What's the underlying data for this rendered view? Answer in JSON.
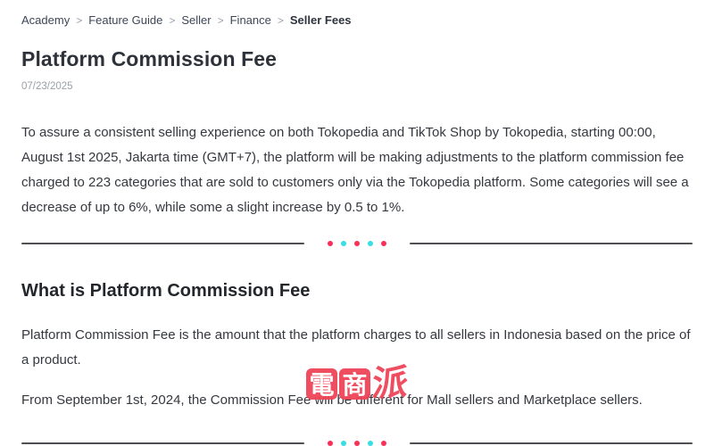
{
  "breadcrumb": {
    "separator": ">",
    "items": [
      {
        "label": "Academy"
      },
      {
        "label": "Feature Guide"
      },
      {
        "label": "Seller"
      },
      {
        "label": "Finance"
      },
      {
        "label": "Seller Fees"
      }
    ]
  },
  "article": {
    "title": "Platform Commission Fee",
    "date": "07/23/2025",
    "intro": "To assure a consistent selling experience on both Tokopedia and TikTok Shop by Tokopedia, starting 00:00, August 1st 2025, Jakarta time (GMT+7), the platform will be making adjustments to the platform commission fee charged to 223 categories that are sold to customers only via the Tokopedia platform. Some categories will see a decrease of up to 6%, while some a slight increase by 0.5 to 1%.",
    "section": {
      "heading": "What is Platform Commission Fee",
      "paragraph_1": "Platform Commission Fee is the amount that the platform charges to all sellers in Indonesia based on the price of a product.",
      "paragraph_2": "From September 1st, 2024, the Commission Fee will be different for Mall sellers and Marketplace sellers."
    }
  },
  "divider": {
    "line_color": "#4d4f52",
    "dot_colors": [
      "#fb2e57",
      "#35dfe5",
      "#fb2e57",
      "#35dfe5",
      "#fb2e57"
    ]
  },
  "watermark": {
    "characters": [
      "電",
      "商",
      "派"
    ],
    "color": "#ef4458"
  },
  "colors": {
    "title_text": "#2d3139",
    "body_text": "#35383e",
    "date_text": "#999fa8",
    "breadcrumb_text": "#3e4656",
    "breadcrumb_separator": "#9aa3b0"
  }
}
